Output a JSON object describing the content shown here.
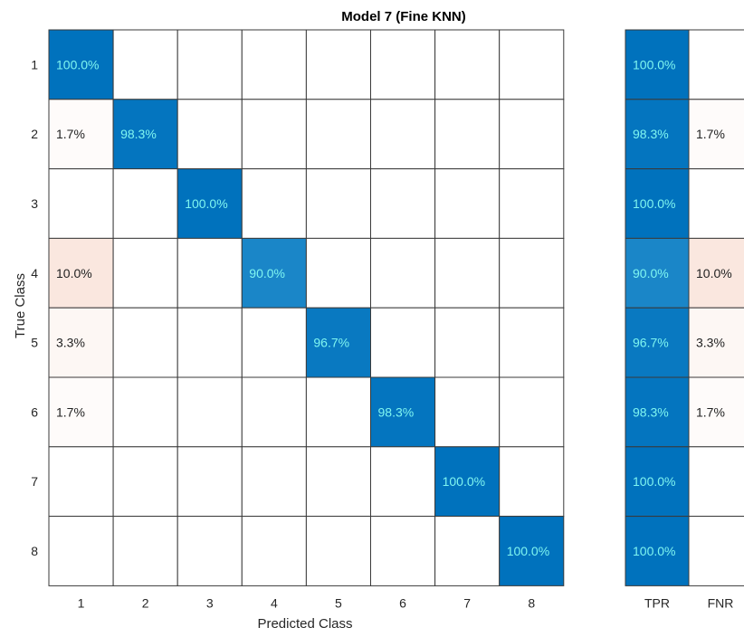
{
  "chart_data": {
    "type": "heatmap",
    "title": "Model 7 (Fine KNN)",
    "xlabel": "Predicted Class",
    "ylabel": "True Class",
    "classes": [
      "1",
      "2",
      "3",
      "4",
      "5",
      "6",
      "7",
      "8"
    ],
    "matrix": [
      [
        100.0,
        null,
        null,
        null,
        null,
        null,
        null,
        null
      ],
      [
        1.7,
        98.3,
        null,
        null,
        null,
        null,
        null,
        null
      ],
      [
        null,
        null,
        100.0,
        null,
        null,
        null,
        null,
        null
      ],
      [
        10.0,
        null,
        null,
        90.0,
        null,
        null,
        null,
        null
      ],
      [
        3.3,
        null,
        null,
        null,
        96.7,
        null,
        null,
        null
      ],
      [
        1.7,
        null,
        null,
        null,
        null,
        98.3,
        null,
        null
      ],
      [
        null,
        null,
        null,
        null,
        null,
        null,
        100.0,
        null
      ],
      [
        null,
        null,
        null,
        null,
        null,
        null,
        null,
        100.0
      ]
    ],
    "summary_columns": [
      "TPR",
      "FNR"
    ],
    "tpr": [
      100.0,
      98.3,
      100.0,
      90.0,
      96.7,
      98.3,
      100.0,
      100.0
    ],
    "fnr": [
      null,
      1.7,
      null,
      10.0,
      3.3,
      1.7,
      null,
      null
    ],
    "unit": "%",
    "colors": {
      "diagonal_high": "#0072bd",
      "diagonal_low": "#1a86c8",
      "off_diagonal": "#d95319",
      "diagonal_text": "#7ff5f0",
      "off_text": "#222222",
      "grid": "#3a3a3a"
    }
  }
}
